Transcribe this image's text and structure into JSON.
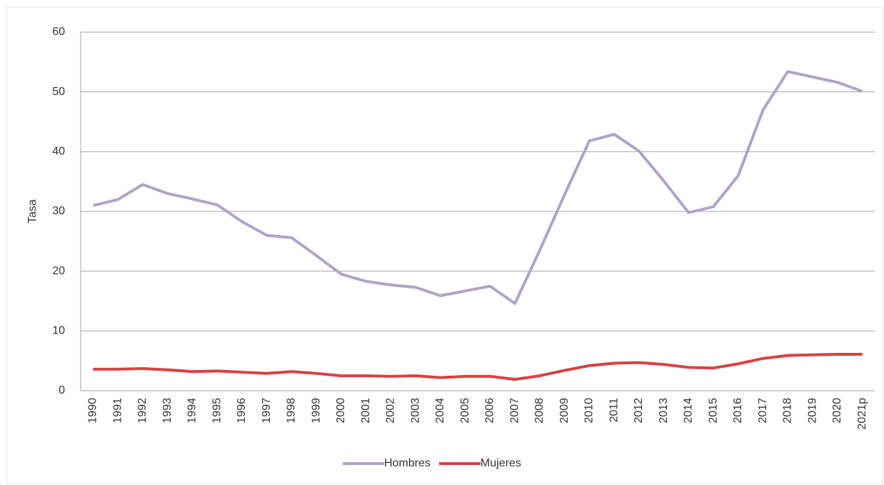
{
  "chart_data": {
    "type": "line",
    "y_label": "Tasa",
    "categories": [
      "1990",
      "1991",
      "1992",
      "1993",
      "1994",
      "1995",
      "1996",
      "1997",
      "1998",
      "1999",
      "2000",
      "2001",
      "2002",
      "2003",
      "2004",
      "2005",
      "2006",
      "2007",
      "2008",
      "2009",
      "2010",
      "2011",
      "2012",
      "2013",
      "2014",
      "2015",
      "2016",
      "2017",
      "2018",
      "2019",
      "2020",
      "2021p"
    ],
    "series": [
      {
        "name": "Hombres",
        "color": "#b3a2c7",
        "values": [
          31,
          32,
          34.5,
          33,
          32.1,
          31.1,
          28.3,
          26,
          25.6,
          22.6,
          19.5,
          18.3,
          17.7,
          17.3,
          15.9,
          16.7,
          17.5,
          14.6,
          23.5,
          32.8,
          41.8,
          42.9,
          40.1,
          35.1,
          29.8,
          30.8,
          36,
          47,
          53.4,
          52.5,
          51.6,
          50.1
        ]
      },
      {
        "name": "Mujeres",
        "color": "#d94141",
        "values": [
          3.6,
          3.6,
          3.7,
          3.5,
          3.2,
          3.3,
          3.1,
          2.9,
          3.2,
          2.9,
          2.5,
          2.5,
          2.4,
          2.5,
          2.2,
          2.4,
          2.4,
          1.9,
          2.5,
          3.4,
          4.2,
          4.6,
          4.7,
          4.4,
          3.9,
          3.8,
          4.5,
          5.4,
          5.9,
          6.0,
          6.1,
          6.1
        ]
      }
    ],
    "ylim": [
      0,
      60
    ],
    "yticks": [
      0,
      10,
      20,
      30,
      40,
      50,
      60
    ],
    "grid": true,
    "legend": "bottom"
  }
}
